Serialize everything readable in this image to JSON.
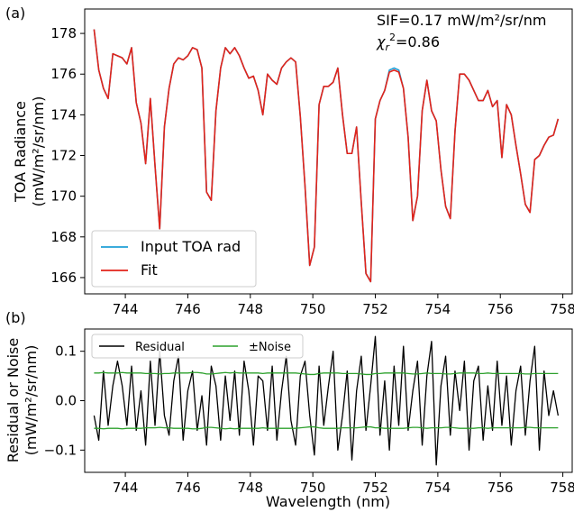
{
  "chart_data": [
    {
      "type": "line",
      "panel_label": "(a)",
      "xlabel": "",
      "ylabel_line1": "TOA Radiance",
      "ylabel_line2": "(mW/m²/sr/nm)",
      "xlim": [
        742.7,
        758.3
      ],
      "ylim": [
        165.2,
        179.2
      ],
      "xticks": [
        744,
        746,
        748,
        750,
        752,
        754,
        756,
        758
      ],
      "yticks": [
        166,
        168,
        170,
        172,
        174,
        176,
        178
      ],
      "grid": false,
      "legend_position": "lower-left",
      "annotations": [
        "SIF=0.17 mW/m²/sr/nm",
        "χr²=0.86"
      ],
      "x": [
        743.0,
        743.15,
        743.3,
        743.45,
        743.6,
        743.75,
        743.9,
        744.05,
        744.2,
        744.35,
        744.5,
        744.65,
        744.8,
        744.95,
        745.1,
        745.25,
        745.4,
        745.55,
        745.7,
        745.85,
        746.0,
        746.15,
        746.3,
        746.45,
        746.6,
        746.75,
        746.9,
        747.05,
        747.2,
        747.35,
        747.5,
        747.65,
        747.8,
        747.95,
        748.1,
        748.25,
        748.4,
        748.55,
        748.7,
        748.85,
        749.0,
        749.15,
        749.3,
        749.45,
        749.6,
        749.75,
        749.9,
        750.05,
        750.2,
        750.35,
        750.5,
        750.65,
        750.8,
        750.95,
        751.1,
        751.25,
        751.4,
        751.55,
        751.7,
        751.85,
        752.0,
        752.15,
        752.3,
        752.45,
        752.6,
        752.75,
        752.9,
        753.05,
        753.2,
        753.35,
        753.5,
        753.65,
        753.8,
        753.95,
        754.1,
        754.25,
        754.4,
        754.55,
        754.7,
        754.85,
        755.0,
        755.15,
        755.3,
        755.45,
        755.6,
        755.75,
        755.9,
        756.05,
        756.2,
        756.35,
        756.5,
        756.65,
        756.8,
        756.95,
        757.1,
        757.25,
        757.4,
        757.55,
        757.7,
        757.85
      ],
      "series": [
        {
          "name": "Input TOA rad",
          "color": "#1f9fd6",
          "values": [
            178.2,
            176.2,
            175.3,
            174.8,
            177.0,
            176.9,
            176.8,
            176.5,
            177.3,
            174.6,
            173.6,
            171.6,
            174.8,
            171.5,
            168.4,
            173.4,
            175.3,
            176.5,
            176.8,
            176.7,
            176.9,
            177.3,
            177.2,
            176.3,
            170.2,
            169.8,
            174.2,
            176.3,
            177.3,
            177.0,
            177.3,
            176.9,
            176.3,
            175.8,
            175.9,
            175.2,
            174.0,
            176.0,
            175.7,
            175.5,
            176.3,
            176.6,
            176.8,
            176.6,
            173.9,
            170.5,
            166.6,
            167.5,
            174.5,
            175.4,
            175.4,
            175.6,
            176.3,
            174.0,
            172.1,
            172.1,
            173.4,
            169.7,
            166.2,
            165.8,
            173.8,
            174.7,
            175.2,
            176.2,
            176.3,
            176.2,
            175.3,
            172.9,
            168.8,
            170.0,
            174.2,
            175.7,
            174.2,
            173.7,
            171.3,
            169.5,
            168.9,
            173.2,
            176.0,
            176.0,
            175.7,
            175.2,
            174.7,
            174.7,
            175.2,
            174.4,
            174.7,
            171.9,
            174.5,
            174.0,
            172.5,
            171.1,
            169.6,
            169.2,
            171.8,
            172.0,
            172.5,
            172.9,
            173.0,
            173.8
          ]
        },
        {
          "name": "Fit",
          "color": "#e2231a",
          "values": [
            178.2,
            176.2,
            175.3,
            174.8,
            177.0,
            176.9,
            176.8,
            176.5,
            177.3,
            174.6,
            173.6,
            171.6,
            174.8,
            171.5,
            168.4,
            173.4,
            175.3,
            176.5,
            176.8,
            176.7,
            176.9,
            177.3,
            177.2,
            176.3,
            170.2,
            169.8,
            174.2,
            176.3,
            177.3,
            177.0,
            177.3,
            176.9,
            176.3,
            175.8,
            175.9,
            175.2,
            174.0,
            176.0,
            175.7,
            175.5,
            176.3,
            176.6,
            176.8,
            176.6,
            173.9,
            170.5,
            166.6,
            167.5,
            174.5,
            175.4,
            175.4,
            175.6,
            176.3,
            174.0,
            172.1,
            172.1,
            173.4,
            169.7,
            166.2,
            165.8,
            173.8,
            174.7,
            175.2,
            176.1,
            176.2,
            176.1,
            175.3,
            172.9,
            168.8,
            170.0,
            174.2,
            175.7,
            174.2,
            173.7,
            171.3,
            169.5,
            168.9,
            173.2,
            176.0,
            176.0,
            175.7,
            175.2,
            174.7,
            174.7,
            175.2,
            174.4,
            174.7,
            171.9,
            174.5,
            174.0,
            172.5,
            171.1,
            169.6,
            169.2,
            171.8,
            172.0,
            172.5,
            172.9,
            173.0,
            173.8
          ]
        }
      ]
    },
    {
      "type": "line",
      "panel_label": "(b)",
      "xlabel": "Wavelength (nm)",
      "ylabel_line1": "Residual or Noise",
      "ylabel_line2": "(mW/m²/sr/nm)",
      "xlim": [
        742.7,
        758.3
      ],
      "ylim": [
        -0.145,
        0.145
      ],
      "xticks": [
        744,
        746,
        748,
        750,
        752,
        754,
        756,
        758
      ],
      "yticks": [
        -0.1,
        0.0,
        0.1
      ],
      "ytick_labels": [
        "−0.1",
        "0.0",
        "0.1"
      ],
      "grid": false,
      "legend_position": "top-left",
      "x": [
        743.0,
        743.15,
        743.3,
        743.45,
        743.6,
        743.75,
        743.9,
        744.05,
        744.2,
        744.35,
        744.5,
        744.65,
        744.8,
        744.95,
        745.1,
        745.25,
        745.4,
        745.55,
        745.7,
        745.85,
        746.0,
        746.15,
        746.3,
        746.45,
        746.6,
        746.75,
        746.9,
        747.05,
        747.2,
        747.35,
        747.5,
        747.65,
        747.8,
        747.95,
        748.1,
        748.25,
        748.4,
        748.55,
        748.7,
        748.85,
        749.0,
        749.15,
        749.3,
        749.45,
        749.6,
        749.75,
        749.9,
        750.05,
        750.2,
        750.35,
        750.5,
        750.65,
        750.8,
        750.95,
        751.1,
        751.25,
        751.4,
        751.55,
        751.7,
        751.85,
        752.0,
        752.15,
        752.3,
        752.45,
        752.6,
        752.75,
        752.9,
        753.05,
        753.2,
        753.35,
        753.5,
        753.65,
        753.8,
        753.95,
        754.1,
        754.25,
        754.4,
        754.55,
        754.7,
        754.85,
        755.0,
        755.15,
        755.3,
        755.45,
        755.6,
        755.75,
        755.9,
        756.05,
        756.2,
        756.35,
        756.5,
        756.65,
        756.8,
        756.95,
        757.1,
        757.25,
        757.4,
        757.55,
        757.7,
        757.85
      ],
      "series": [
        {
          "name": "Residual",
          "color": "#000000",
          "values": [
            -0.03,
            -0.08,
            0.06,
            -0.05,
            0.03,
            0.08,
            0.03,
            -0.05,
            0.07,
            -0.06,
            0.02,
            -0.09,
            0.08,
            -0.05,
            0.1,
            -0.03,
            -0.07,
            0.04,
            0.09,
            -0.08,
            0.02,
            0.06,
            -0.06,
            0.01,
            -0.09,
            0.07,
            0.03,
            -0.08,
            0.05,
            -0.04,
            0.06,
            -0.07,
            0.08,
            0.02,
            -0.09,
            0.05,
            0.04,
            -0.06,
            0.07,
            -0.08,
            0.02,
            0.09,
            -0.04,
            -0.09,
            0.05,
            0.08,
            -0.03,
            -0.11,
            0.07,
            -0.05,
            0.03,
            0.1,
            -0.1,
            -0.03,
            0.06,
            -0.12,
            0.02,
            0.09,
            -0.06,
            0.03,
            0.13,
            -0.07,
            0.04,
            -0.1,
            0.07,
            -0.05,
            0.11,
            -0.06,
            0.02,
            0.08,
            -0.09,
            0.05,
            0.12,
            -0.13,
            0.03,
            0.09,
            -0.07,
            0.06,
            -0.02,
            0.08,
            -0.1,
            0.04,
            0.07,
            -0.08,
            0.03,
            -0.06,
            0.08,
            -0.05,
            0.05,
            -0.09,
            0.02,
            0.07,
            -0.07,
            0.04,
            0.11,
            -0.1,
            0.06,
            -0.03,
            0.02,
            -0.03
          ]
        },
        {
          "name": "±Noise",
          "color": "#2ca02c",
          "upper": [
            0.056,
            0.056,
            0.057,
            0.056,
            0.056,
            0.056,
            0.057,
            0.056,
            0.056,
            0.056,
            0.056,
            0.055,
            0.055,
            0.055,
            0.054,
            0.055,
            0.055,
            0.056,
            0.056,
            0.056,
            0.056,
            0.057,
            0.057,
            0.056,
            0.054,
            0.054,
            0.055,
            0.056,
            0.057,
            0.056,
            0.057,
            0.056,
            0.056,
            0.056,
            0.056,
            0.056,
            0.055,
            0.056,
            0.056,
            0.056,
            0.056,
            0.056,
            0.056,
            0.056,
            0.055,
            0.054,
            0.053,
            0.053,
            0.055,
            0.056,
            0.056,
            0.056,
            0.056,
            0.055,
            0.055,
            0.055,
            0.055,
            0.054,
            0.053,
            0.053,
            0.055,
            0.055,
            0.056,
            0.056,
            0.056,
            0.056,
            0.056,
            0.055,
            0.054,
            0.054,
            0.055,
            0.056,
            0.055,
            0.055,
            0.055,
            0.054,
            0.054,
            0.055,
            0.056,
            0.056,
            0.056,
            0.056,
            0.055,
            0.055,
            0.056,
            0.055,
            0.055,
            0.055,
            0.055,
            0.055,
            0.055,
            0.055,
            0.054,
            0.054,
            0.055,
            0.055,
            0.055,
            0.055,
            0.055,
            0.055
          ],
          "lower": [
            -0.056,
            -0.056,
            -0.057,
            -0.056,
            -0.056,
            -0.056,
            -0.057,
            -0.056,
            -0.056,
            -0.056,
            -0.056,
            -0.055,
            -0.055,
            -0.055,
            -0.054,
            -0.055,
            -0.055,
            -0.056,
            -0.056,
            -0.056,
            -0.056,
            -0.057,
            -0.057,
            -0.056,
            -0.054,
            -0.054,
            -0.055,
            -0.056,
            -0.057,
            -0.056,
            -0.057,
            -0.056,
            -0.056,
            -0.056,
            -0.056,
            -0.056,
            -0.055,
            -0.056,
            -0.056,
            -0.056,
            -0.056,
            -0.056,
            -0.056,
            -0.056,
            -0.055,
            -0.054,
            -0.053,
            -0.053,
            -0.055,
            -0.056,
            -0.056,
            -0.056,
            -0.056,
            -0.055,
            -0.055,
            -0.055,
            -0.055,
            -0.054,
            -0.053,
            -0.053,
            -0.055,
            -0.055,
            -0.056,
            -0.056,
            -0.056,
            -0.056,
            -0.056,
            -0.055,
            -0.054,
            -0.054,
            -0.055,
            -0.056,
            -0.055,
            -0.055,
            -0.055,
            -0.054,
            -0.054,
            -0.055,
            -0.056,
            -0.056,
            -0.056,
            -0.056,
            -0.055,
            -0.055,
            -0.056,
            -0.055,
            -0.055,
            -0.055,
            -0.055,
            -0.055,
            -0.055,
            -0.055,
            -0.054,
            -0.054,
            -0.055,
            -0.055,
            -0.055,
            -0.055,
            -0.055,
            -0.055
          ]
        }
      ]
    }
  ]
}
